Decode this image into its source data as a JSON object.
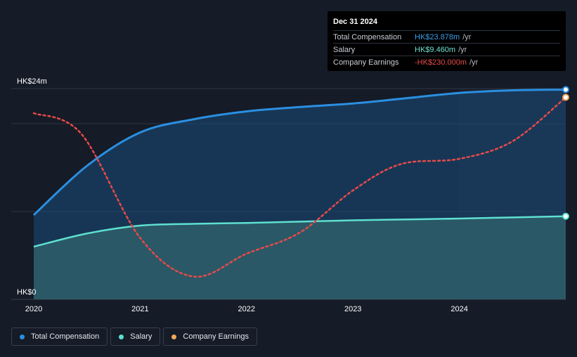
{
  "tooltip": {
    "date": "Dec 31 2024",
    "rows": [
      {
        "name": "Total Compensation",
        "value": "HK$23.878m",
        "unit": "/yr",
        "color": "#3b9ee8"
      },
      {
        "name": "Salary",
        "value": "HK$9.460m",
        "unit": "/yr",
        "color": "#6fe3d4"
      },
      {
        "name": "Company Earnings",
        "value": "-HK$230.000m",
        "unit": "/yr",
        "color": "#e84a4a"
      }
    ]
  },
  "legend": [
    {
      "label": "Total Compensation",
      "color": "#2b8fe0"
    },
    {
      "label": "Salary",
      "color": "#5ee0d0"
    },
    {
      "label": "Company Earnings",
      "color": "#f0a85a"
    }
  ],
  "chart_data": {
    "type": "line",
    "title": "",
    "ylim": [
      0,
      24
    ],
    "y_tick_labels": [
      "HK$24m",
      "HK$0"
    ],
    "x_tick_labels": [
      "2020",
      "2021",
      "2022",
      "2023",
      "2024"
    ],
    "x_ticks": [
      2020,
      2021,
      2022,
      2023,
      2024
    ],
    "xlim": [
      2020,
      2025
    ],
    "series": [
      {
        "name": "Total Compensation",
        "unit": "HK$m",
        "color": "#2b8fe0",
        "points": [
          [
            2020.0,
            9.6
          ],
          [
            2020.5,
            15.2
          ],
          [
            2021.0,
            19.0
          ],
          [
            2021.5,
            20.5
          ],
          [
            2022.0,
            21.4
          ],
          [
            2022.5,
            21.9
          ],
          [
            2023.0,
            22.3
          ],
          [
            2023.5,
            22.9
          ],
          [
            2024.0,
            23.5
          ],
          [
            2024.5,
            23.8
          ],
          [
            2025.0,
            23.878
          ]
        ]
      },
      {
        "name": "Salary",
        "unit": "HK$m",
        "color": "#5ee0d0",
        "points": [
          [
            2020.0,
            6.0
          ],
          [
            2020.5,
            7.5
          ],
          [
            2021.0,
            8.4
          ],
          [
            2021.5,
            8.6
          ],
          [
            2022.0,
            8.7
          ],
          [
            2022.5,
            8.85
          ],
          [
            2023.0,
            9.0
          ],
          [
            2023.5,
            9.1
          ],
          [
            2024.0,
            9.2
          ],
          [
            2024.5,
            9.33
          ],
          [
            2025.0,
            9.46
          ]
        ]
      },
      {
        "name": "Company Earnings",
        "unit": "relative",
        "color": "#e84a4a",
        "dashed": true,
        "points": [
          [
            2020.0,
            21.2
          ],
          [
            2020.45,
            18.8
          ],
          [
            2021.0,
            7.0
          ],
          [
            2021.5,
            2.6
          ],
          [
            2022.0,
            5.2
          ],
          [
            2022.5,
            7.6
          ],
          [
            2023.0,
            12.4
          ],
          [
            2023.45,
            15.4
          ],
          [
            2024.0,
            16.0
          ],
          [
            2024.5,
            18.0
          ],
          [
            2025.0,
            23.0
          ]
        ]
      }
    ]
  }
}
